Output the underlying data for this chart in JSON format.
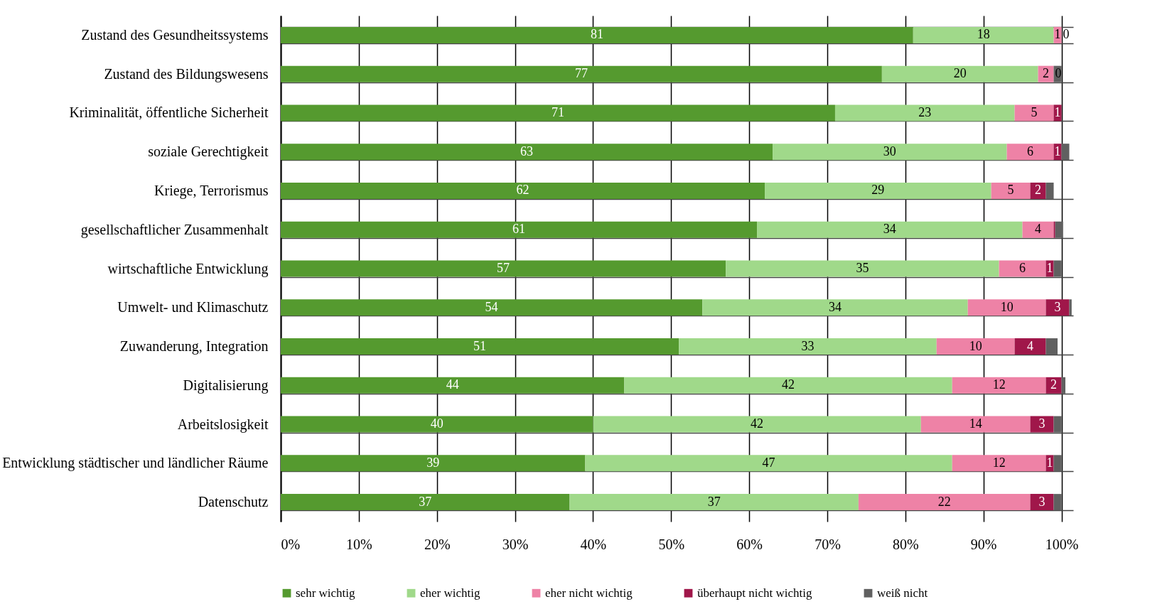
{
  "chart_data": {
    "type": "bar",
    "orientation": "horizontal",
    "stacked": true,
    "categories": [
      "Zustand des Gesundheitssystems",
      "Zustand des Bildungswesens",
      "Kriminalität, öffentliche Sicherheit",
      "soziale Gerechtigkeit",
      "Kriege, Terrorismus",
      "gesellschaftlicher Zusammenhalt",
      "wirtschaftliche Entwicklung",
      "Umwelt- und Klimaschutz",
      "Zuwanderung, Integration",
      "Digitalisierung",
      "Arbeitslosigkeit",
      "Entwicklung städtischer und ländlicher Räume",
      "Datenschutz"
    ],
    "series": [
      {
        "name": "sehr wichtig",
        "color": "#559a2f",
        "values": [
          81,
          77,
          71,
          63,
          62,
          61,
          57,
          54,
          51,
          44,
          40,
          39,
          37
        ],
        "value_labels": [
          "81",
          "77",
          "71",
          "63",
          "62",
          "61",
          "57",
          "54",
          "51",
          "44",
          "40",
          "39",
          "37"
        ]
      },
      {
        "name": "eher wichtig",
        "color": "#a0d98a",
        "values": [
          18,
          20,
          23,
          30,
          29,
          34,
          35,
          34,
          33,
          42,
          42,
          47,
          37
        ],
        "value_labels": [
          "18",
          "20",
          "23",
          "30",
          "29",
          "34",
          "35",
          "34",
          "33",
          "42",
          "42",
          "47",
          "37"
        ]
      },
      {
        "name": "eher nicht wichtig",
        "color": "#ee82a6",
        "values": [
          1,
          2,
          5,
          6,
          5,
          4,
          6,
          10,
          10,
          12,
          14,
          12,
          22
        ],
        "value_labels": [
          "1",
          "2",
          "5",
          "6",
          "5",
          "4",
          "6",
          "10",
          "10",
          "12",
          "14",
          "12",
          "22"
        ]
      },
      {
        "name": "überhaupt nicht wichtig",
        "color": "#a0174a",
        "values": [
          0,
          0,
          1,
          1,
          2,
          0.2,
          1,
          3,
          4,
          2,
          3,
          1,
          3
        ],
        "value_labels": [
          "0",
          "0",
          "1",
          "1",
          "2",
          null,
          "1",
          "3",
          "4",
          "2",
          "3",
          "1",
          "3"
        ]
      },
      {
        "name": "weiß nicht",
        "color": "#606060",
        "values": [
          0,
          1,
          0,
          1,
          1,
          1,
          1,
          0.3,
          1.5,
          0.5,
          1,
          1,
          1
        ],
        "value_labels": [
          null,
          null,
          null,
          null,
          null,
          null,
          null,
          null,
          null,
          null,
          null,
          null,
          null
        ]
      }
    ],
    "xlim": [
      0,
      101.5
    ],
    "xticks": [
      {
        "value": 0,
        "label": "0%"
      },
      {
        "value": 10,
        "label": "10%"
      },
      {
        "value": 20,
        "label": "20%"
      },
      {
        "value": 30,
        "label": "30%"
      },
      {
        "value": 40,
        "label": "40%"
      },
      {
        "value": 50,
        "label": "50%"
      },
      {
        "value": 60,
        "label": "60%"
      },
      {
        "value": 70,
        "label": "70%"
      },
      {
        "value": 80,
        "label": "80%"
      },
      {
        "value": 90,
        "label": "90%"
      },
      {
        "value": 100,
        "label": "100%"
      }
    ],
    "grid": true,
    "legend": "bottom"
  }
}
